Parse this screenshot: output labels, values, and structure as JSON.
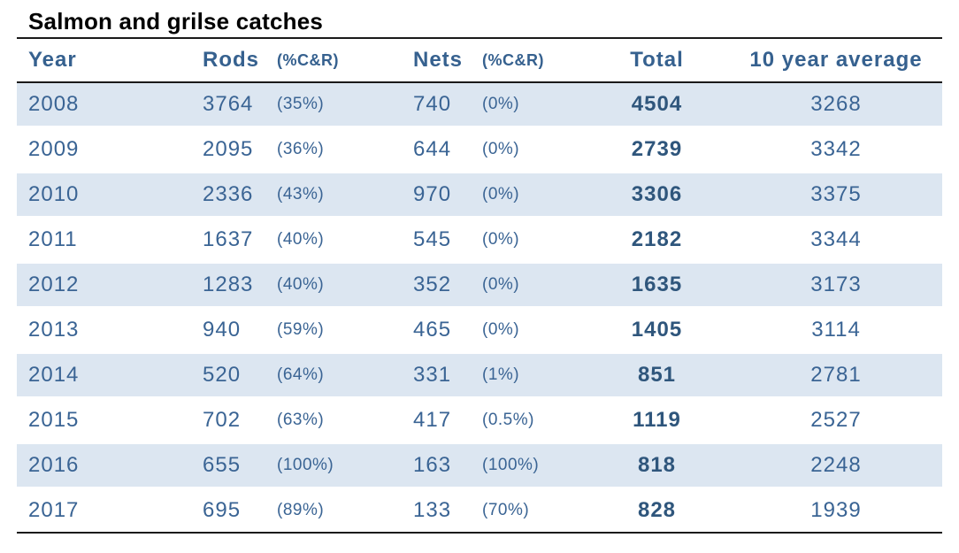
{
  "chart_data": {
    "type": "table",
    "title": "Salmon and grilse catches",
    "columns": [
      "Year",
      "Rods",
      "(%C&R)",
      "Nets",
      "(%C&R)",
      "Total",
      "10 year average"
    ],
    "rows": [
      [
        "2008",
        3764,
        "(35%)",
        740,
        "(0%)",
        4504,
        3268
      ],
      [
        "2009",
        2095,
        "(36%)",
        644,
        "(0%)",
        2739,
        3342
      ],
      [
        "2010",
        2336,
        "(43%)",
        970,
        "(0%)",
        3306,
        3375
      ],
      [
        "2011",
        1637,
        "(40%)",
        545,
        "(0%)",
        2182,
        3344
      ],
      [
        "2012",
        1283,
        "(40%)",
        352,
        "(0%)",
        1635,
        3173
      ],
      [
        "2013",
        940,
        "(59%)",
        465,
        "(0%)",
        1405,
        3114
      ],
      [
        "2014",
        520,
        "(64%)",
        331,
        "(1%)",
        851,
        2781
      ],
      [
        "2015",
        702,
        "(63%)",
        417,
        "(0.5%)",
        1119,
        2527
      ],
      [
        "2016",
        655,
        "(100%)",
        163,
        "(100%)",
        818,
        2248
      ],
      [
        "2017",
        695,
        "(89%)",
        133,
        "(70%)",
        828,
        1939
      ]
    ],
    "banded_row_years": [
      "2008",
      "2010",
      "2012",
      "2014",
      "2016"
    ],
    "layout": {
      "grid": false,
      "band_style": "alternating-rows-starting-first"
    }
  },
  "colors": {
    "row_band": "#dce6f1",
    "header_text": "#36618F",
    "value_text": "#3A6494",
    "total_text": "#2F567C",
    "title_text": "#000000",
    "rule_line": "#1a1a1a",
    "background": "#ffffff"
  }
}
